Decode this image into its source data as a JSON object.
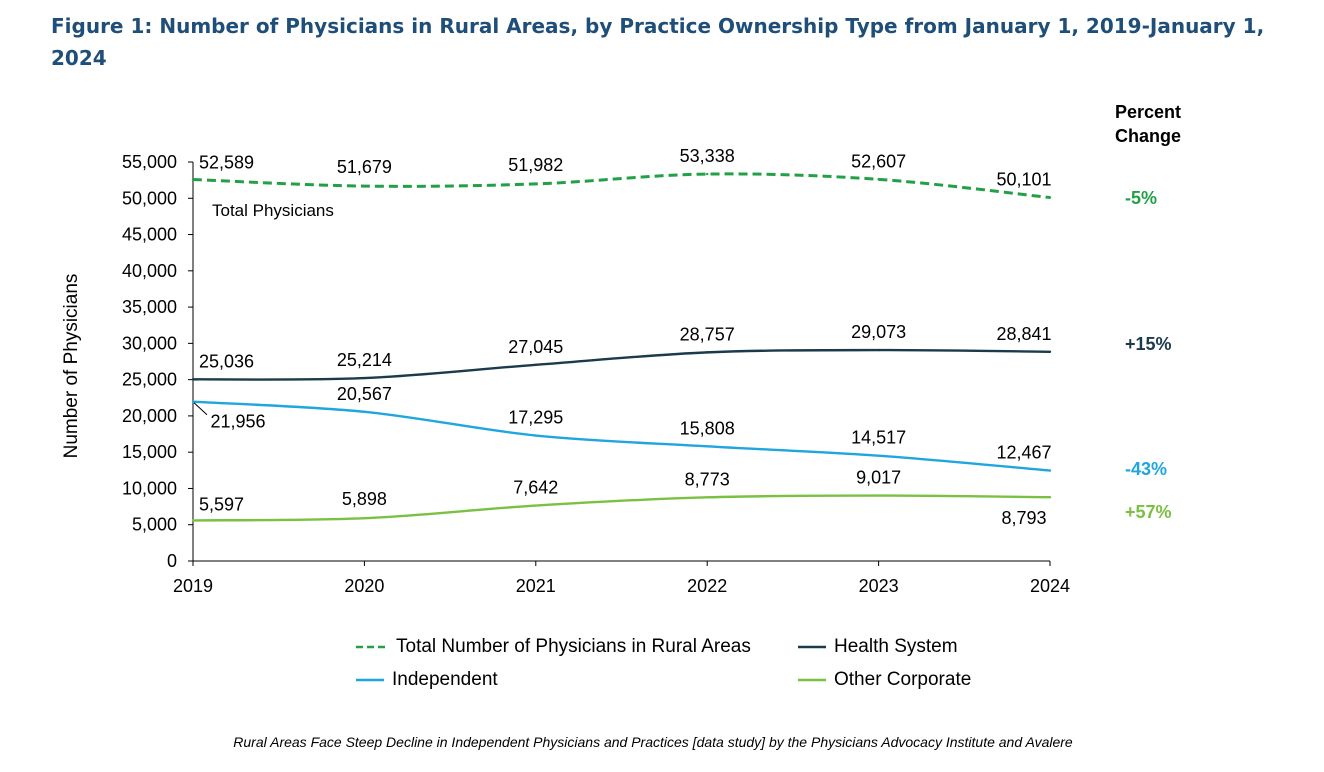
{
  "title": "Figure 1: Number of Physicians in Rural Areas, by Practice Ownership Type from January 1, 2019-January 1, 2024",
  "caption": "Rural Areas Face Steep Decline in Independent Physicians and Practices [data study] by the Physicians Advocacy Institute and Avalere",
  "percent_change_header": "Percent Change",
  "colors": {
    "total": "#22A046",
    "health_system": "#1B3A4B",
    "independent": "#1FA6DE",
    "other_corporate": "#7AC143",
    "title": "#1F4E79"
  },
  "chart_data": {
    "type": "line",
    "x": [
      "2019",
      "2020",
      "2021",
      "2022",
      "2023",
      "2024"
    ],
    "ylabel": "Number of Physicians",
    "xlabel": "",
    "ylim": [
      0,
      55000
    ],
    "yticks": [
      "0",
      "5,000",
      "10,000",
      "15,000",
      "20,000",
      "25,000",
      "30,000",
      "35,000",
      "40,000",
      "45,000",
      "50,000",
      "55,000"
    ],
    "grid": false,
    "legend_position": "bottom",
    "annotation": "Total Physicians",
    "series": [
      {
        "key": "total",
        "name": "Total Number of Physicians in Rural Areas",
        "style": "dashed",
        "values": [
          52589,
          51679,
          51982,
          53338,
          52607,
          50101
        ],
        "labels": [
          "52,589",
          "51,679",
          "51,982",
          "53,338",
          "52,607",
          "50,101"
        ],
        "percent_change": "-5%"
      },
      {
        "key": "health_system",
        "name": "Health System",
        "style": "solid",
        "values": [
          25036,
          25214,
          27045,
          28757,
          29073,
          28841
        ],
        "labels": [
          "25,036",
          "25,214",
          "27,045",
          "28,757",
          "29,073",
          "28,841"
        ],
        "percent_change": "+15%"
      },
      {
        "key": "independent",
        "name": "Independent",
        "style": "solid",
        "values": [
          21956,
          20567,
          17295,
          15808,
          14517,
          12467
        ],
        "labels": [
          "21,956",
          "20,567",
          "17,295",
          "15,808",
          "14,517",
          "12,467"
        ],
        "percent_change": "-43%"
      },
      {
        "key": "other_corporate",
        "name": "Other Corporate",
        "style": "solid",
        "values": [
          5597,
          5898,
          7642,
          8773,
          9017,
          8793
        ],
        "labels": [
          "5,597",
          "5,898",
          "7,642",
          "8,773",
          "9,017",
          "8,793"
        ],
        "percent_change": "+57%"
      }
    ]
  }
}
